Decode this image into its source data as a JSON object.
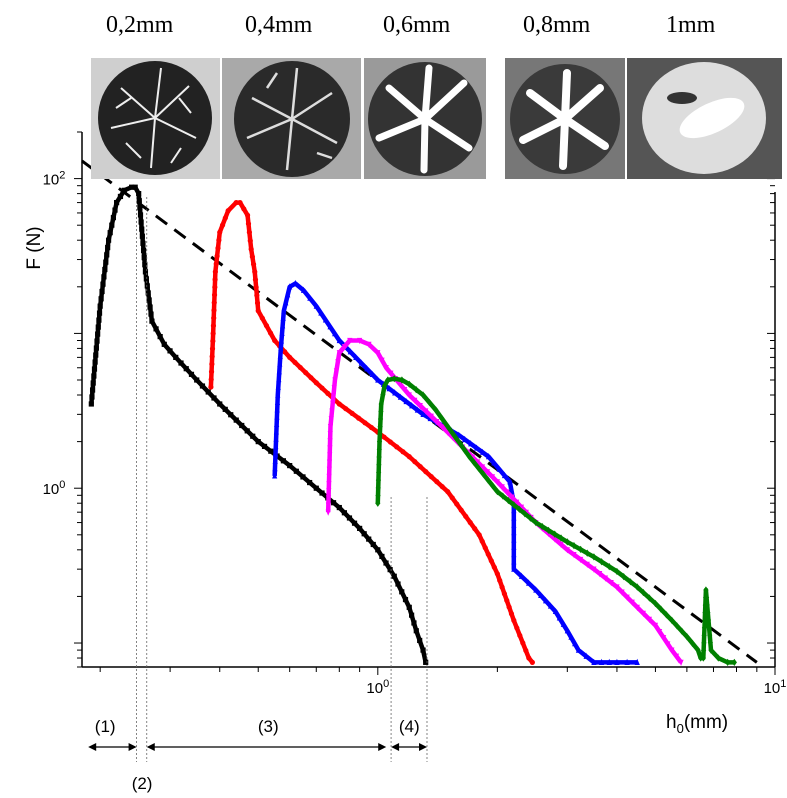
{
  "thumbnails": [
    {
      "label": "0,2mm"
    },
    {
      "label": "0,4mm"
    },
    {
      "label": "0,6mm"
    },
    {
      "label": "0,8mm"
    },
    {
      "label": "1mm"
    }
  ],
  "chart_data": {
    "type": "line",
    "title": "",
    "xlabel": "h",
    "xlabel_sub": "0",
    "xlabel_unit": "(mm)",
    "ylabel": "F (N)",
    "x_scale": "log",
    "y_scale": "log",
    "xlim": [
      0.18,
      10
    ],
    "ylim": [
      0.07,
      200
    ],
    "x_ticks": [
      {
        "base": "10",
        "exp": "0",
        "value": 1
      },
      {
        "base": "10",
        "exp": "1",
        "value": 10
      }
    ],
    "y_ticks": [
      {
        "base": "10",
        "exp": "2",
        "value": 100
      },
      {
        "base": "10",
        "exp": "0",
        "value": 1
      }
    ],
    "grid": false,
    "legend": "none",
    "series": [
      {
        "color": "#000000",
        "marker": "square",
        "x": [
          0.19,
          0.2,
          0.21,
          0.22,
          0.23,
          0.24,
          0.245,
          0.25,
          0.26,
          0.27,
          0.29,
          0.31,
          0.35,
          0.4,
          0.5,
          0.6,
          0.7,
          0.8,
          0.9,
          1.0,
          1.1,
          1.2,
          1.25,
          1.3,
          1.32
        ],
        "y": [
          3.5,
          15,
          40,
          70,
          84,
          88,
          88,
          80,
          25,
          12,
          8.5,
          7,
          5,
          3.5,
          2.0,
          1.4,
          1.0,
          0.75,
          0.55,
          0.4,
          0.27,
          0.17,
          0.12,
          0.09,
          0.075
        ]
      },
      {
        "color": "#ff0000",
        "marker": "circle",
        "x": [
          0.38,
          0.385,
          0.39,
          0.4,
          0.42,
          0.44,
          0.45,
          0.47,
          0.48,
          0.49,
          0.5,
          0.55,
          0.6,
          0.7,
          0.8,
          1.0,
          1.2,
          1.5,
          1.8,
          2.0,
          2.2,
          2.4,
          2.45
        ],
        "y": [
          4.5,
          10,
          25,
          45,
          62,
          70,
          70,
          58,
          35,
          25,
          14,
          9,
          7,
          4.8,
          3.5,
          2.3,
          1.6,
          0.95,
          0.5,
          0.28,
          0.14,
          0.08,
          0.075
        ]
      },
      {
        "color": "#0000ff",
        "marker": "triangle-up",
        "x": [
          0.55,
          0.56,
          0.57,
          0.58,
          0.6,
          0.62,
          0.65,
          0.7,
          0.8,
          1.0,
          1.3,
          1.6,
          1.9,
          2.15,
          2.2,
          2.2,
          2.3,
          2.5,
          2.8,
          3.0,
          3.2,
          3.5,
          4.0,
          4.5
        ],
        "y": [
          1.2,
          4,
          8,
          14,
          20,
          21,
          19,
          15,
          9,
          5,
          3.0,
          2.2,
          1.6,
          1.1,
          0.8,
          0.3,
          0.27,
          0.22,
          0.16,
          0.12,
          0.09,
          0.075,
          0.075,
          0.075
        ]
      },
      {
        "color": "#ff00ff",
        "marker": "triangle-down",
        "x": [
          0.75,
          0.76,
          0.78,
          0.8,
          0.85,
          0.9,
          0.95,
          1.0,
          1.05,
          1.2,
          1.5,
          2.0,
          2.5,
          3.0,
          3.5,
          4.0,
          4.5,
          5.0,
          5.5,
          5.8
        ],
        "y": [
          0.7,
          2.5,
          5,
          7.5,
          9,
          9,
          8.5,
          7.5,
          6,
          4,
          2.3,
          1.1,
          0.6,
          0.4,
          0.3,
          0.23,
          0.17,
          0.13,
          0.09,
          0.075
        ]
      },
      {
        "color": "#008000",
        "marker": "diamond",
        "x": [
          1.0,
          1.01,
          1.02,
          1.04,
          1.06,
          1.1,
          1.15,
          1.2,
          1.3,
          1.4,
          1.5,
          1.7,
          2.0,
          2.5,
          3.0,
          3.5,
          4.0,
          4.5,
          5.0,
          5.5,
          6.0,
          6.4,
          6.5,
          6.6,
          6.7,
          6.9,
          7.2,
          7.6,
          7.9
        ],
        "y": [
          0.8,
          2,
          3.5,
          4.6,
          5,
          5.1,
          5,
          4.7,
          4,
          3.2,
          2.5,
          1.6,
          0.95,
          0.6,
          0.45,
          0.36,
          0.29,
          0.23,
          0.18,
          0.14,
          0.11,
          0.09,
          0.08,
          0.08,
          0.22,
          0.09,
          0.08,
          0.075,
          0.075
        ]
      }
    ],
    "guide_line": {
      "style": "dashed",
      "x": [
        0.18,
        9.0
      ],
      "y": [
        130,
        0.075
      ]
    },
    "markers": [
      {
        "label": "(1)"
      },
      {
        "label": "(2)"
      },
      {
        "label": "(3)"
      },
      {
        "label": "(4)"
      }
    ]
  }
}
